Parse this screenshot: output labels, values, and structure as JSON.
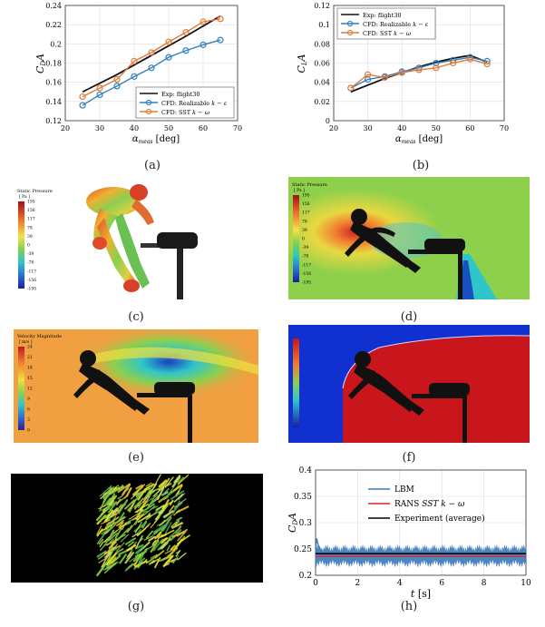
{
  "captions": [
    "(a)",
    "(b)",
    "(c)",
    "(d)",
    "(e)",
    "(f)",
    "(g)",
    "(h)"
  ],
  "chart_data": [
    {
      "type": "line",
      "panel": "a",
      "ylabel": "C_D A",
      "xlabel": "α_meas [deg]",
      "xlim": [
        20,
        70
      ],
      "ylim": [
        0.12,
        0.24
      ],
      "xticks": [
        20,
        30,
        40,
        50,
        60,
        70
      ],
      "yticks": [
        0.12,
        0.14,
        0.16,
        0.18,
        0.2,
        0.22,
        0.24
      ],
      "grid": true,
      "legend_position": "lower-right",
      "series": [
        {
          "name": "Exp: flight30",
          "color": "#111111",
          "x": [
            25,
            35,
            45,
            55,
            65
          ],
          "y": [
            0.15,
            0.168,
            0.188,
            0.208,
            0.229
          ]
        },
        {
          "name": "CFD: Realizable k − ε",
          "color": "#2f7fbf",
          "x": [
            25,
            30,
            35,
            40,
            45,
            50,
            55,
            60,
            65
          ],
          "y": [
            0.136,
            0.147,
            0.156,
            0.166,
            0.175,
            0.186,
            0.193,
            0.199,
            0.204
          ]
        },
        {
          "name": "CFD: SST k − ω",
          "color": "#e07b39",
          "x": [
            25,
            30,
            35,
            40,
            45,
            50,
            55,
            60,
            65
          ],
          "y": [
            0.145,
            0.154,
            0.163,
            0.182,
            0.191,
            0.202,
            0.212,
            0.223,
            0.226
          ]
        }
      ]
    },
    {
      "type": "line",
      "panel": "b",
      "ylabel": "C_L A",
      "xlabel": "α_meas [deg]",
      "xlim": [
        20,
        70
      ],
      "ylim": [
        0,
        0.12
      ],
      "xticks": [
        20,
        30,
        40,
        50,
        60,
        70
      ],
      "yticks": [
        0,
        0.02,
        0.04,
        0.06,
        0.08,
        0.1,
        0.12
      ],
      "grid": true,
      "legend_position": "top-left",
      "series": [
        {
          "name": "Exp: flight30",
          "color": "#111111",
          "x": [
            25,
            30,
            35,
            40,
            45,
            50,
            55,
            60,
            65
          ],
          "y": [
            0.03,
            0.037,
            0.044,
            0.05,
            0.056,
            0.061,
            0.065,
            0.068,
            0.061
          ]
        },
        {
          "name": "CFD: Realizable k − ε",
          "color": "#2f7fbf",
          "x": [
            25,
            30,
            35,
            40,
            45,
            50,
            55,
            60,
            65
          ],
          "y": [
            0.034,
            0.043,
            0.046,
            0.051,
            0.055,
            0.06,
            0.063,
            0.066,
            0.062
          ]
        },
        {
          "name": "CFD: SST k − ω",
          "color": "#e07b39",
          "x": [
            25,
            30,
            35,
            40,
            45,
            50,
            55,
            60,
            65
          ],
          "y": [
            0.034,
            0.048,
            0.045,
            0.05,
            0.053,
            0.055,
            0.06,
            0.064,
            0.059
          ]
        }
      ]
    },
    {
      "type": "line",
      "panel": "h",
      "ylabel": "C_D A",
      "xlabel": "t [s]",
      "xlim": [
        0,
        10
      ],
      "ylim": [
        0.2,
        0.4
      ],
      "xticks": [
        0,
        2,
        4,
        6,
        8,
        10
      ],
      "yticks": [
        0.2,
        0.25,
        0.3,
        0.35,
        0.4
      ],
      "grid": true,
      "legend_position": "top-right",
      "series": [
        {
          "name": "LBM",
          "color": "#3b78b8",
          "mean": 0.238,
          "band": [
            0.222,
            0.252
          ],
          "initial_peak": 0.27
        },
        {
          "name": "RANS SST k − ω",
          "color": "#d62728",
          "value": 0.236
        },
        {
          "name": "Experiment (average)",
          "color": "#000000",
          "value": 0.241
        }
      ]
    }
  ],
  "legend_parts": {
    "exp": "Exp: flight30",
    "rke": "CFD: Realizable ",
    "sst": "CFD: SST ",
    "lbm": "LBM",
    "rans": "RANS ",
    "expavg": "Experiment (average)"
  },
  "axis_label_parts": {
    "c": "C",
    "d": "D",
    "l": "L",
    "a": "A",
    "alpha": "α",
    "meas": "meas",
    "deg": " [deg]",
    "t": "t",
    "s": " [s]",
    "k": "k",
    "minus": " − ",
    "eps": "ε",
    "omega": "ω",
    "sstit": "SST"
  },
  "contours": {
    "c": {
      "title": "Static Pressure",
      "unit": "[ Pa ]",
      "ticks": [
        "195",
        "156",
        "117",
        "78",
        "39",
        "0",
        "-39",
        "-78",
        "-117",
        "-156",
        "-195"
      ]
    },
    "d": {
      "title": "Static Pressure",
      "unit": "[ Pa ]",
      "ticks": [
        "195",
        "156",
        "117",
        "78",
        "39",
        "0",
        "-39",
        "-78",
        "-117",
        "-156",
        "-195"
      ]
    },
    "e": {
      "title": "Velocity Magnitude",
      "unit": "[ m/s ]",
      "ticks": [
        "24",
        "21",
        "18",
        "15",
        "12",
        "9",
        "6",
        "3",
        "0"
      ]
    }
  },
  "colors": {
    "exp": "#111111",
    "rke": "#2f7fbf",
    "sst": "#e07b39",
    "lbm": "#3b78b8",
    "rans": "#d62728",
    "grid": "#dddddd",
    "contour_bg_green": "#8ed04b",
    "velocity_bg": "#f0a040",
    "vof_red": "#c8161c",
    "vof_blue": "#1030d0"
  }
}
